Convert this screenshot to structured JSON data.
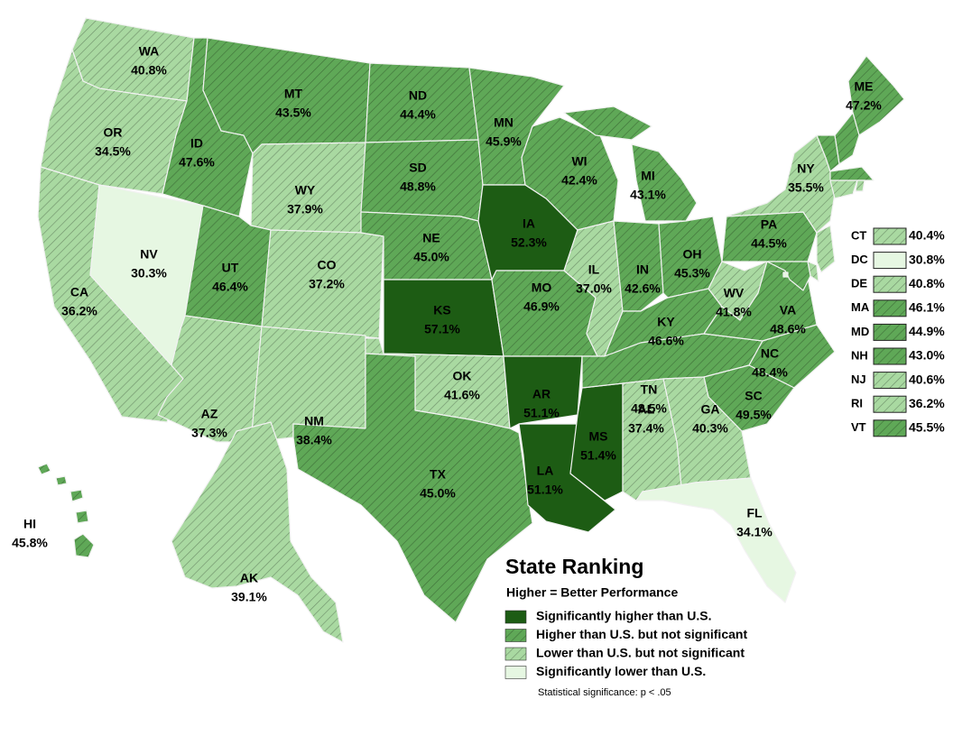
{
  "map": {
    "title": "State Ranking",
    "subtitle": "Higher = Better Performance",
    "note": "Statistical significance: p < .05",
    "legend": [
      {
        "label": "Significantly higher than U.S.",
        "color": "#1d5c14",
        "hatch": false
      },
      {
        "label": "Higher than U.S. but not significant",
        "color": "#5fa857",
        "hatch": true
      },
      {
        "label": "Lower than U.S. but not significant",
        "color": "#a9d9a1",
        "hatch": true
      },
      {
        "label": "Significantly lower than U.S.",
        "color": "#e6f7e2",
        "hatch": false
      }
    ],
    "states": [
      {
        "abbr": "WA",
        "value": "40.8%",
        "level": 2
      },
      {
        "abbr": "OR",
        "value": "34.5%",
        "level": 2
      },
      {
        "abbr": "CA",
        "value": "36.2%",
        "level": 2
      },
      {
        "abbr": "NV",
        "value": "30.3%",
        "level": 3
      },
      {
        "abbr": "ID",
        "value": "47.6%",
        "level": 1
      },
      {
        "abbr": "MT",
        "value": "43.5%",
        "level": 1
      },
      {
        "abbr": "WY",
        "value": "37.9%",
        "level": 2
      },
      {
        "abbr": "UT",
        "value": "46.4%",
        "level": 1
      },
      {
        "abbr": "CO",
        "value": "37.2%",
        "level": 2
      },
      {
        "abbr": "AZ",
        "value": "37.3%",
        "level": 2
      },
      {
        "abbr": "NM",
        "value": "38.4%",
        "level": 2
      },
      {
        "abbr": "ND",
        "value": "44.4%",
        "level": 1
      },
      {
        "abbr": "SD",
        "value": "48.8%",
        "level": 1
      },
      {
        "abbr": "NE",
        "value": "45.0%",
        "level": 1
      },
      {
        "abbr": "KS",
        "value": "57.1%",
        "level": 0
      },
      {
        "abbr": "OK",
        "value": "41.6%",
        "level": 2
      },
      {
        "abbr": "TX",
        "value": "45.0%",
        "level": 1
      },
      {
        "abbr": "MN",
        "value": "45.9%",
        "level": 1
      },
      {
        "abbr": "IA",
        "value": "52.3%",
        "level": 0
      },
      {
        "abbr": "MO",
        "value": "46.9%",
        "level": 1
      },
      {
        "abbr": "AR",
        "value": "51.1%",
        "level": 0
      },
      {
        "abbr": "LA",
        "value": "51.1%",
        "level": 0
      },
      {
        "abbr": "MS",
        "value": "51.4%",
        "level": 0
      },
      {
        "abbr": "WI",
        "value": "42.4%",
        "level": 1
      },
      {
        "abbr": "IL",
        "value": "37.0%",
        "level": 2
      },
      {
        "abbr": "MI",
        "value": "43.1%",
        "level": 1
      },
      {
        "abbr": "IN",
        "value": "42.6%",
        "level": 1
      },
      {
        "abbr": "OH",
        "value": "45.3%",
        "level": 1
      },
      {
        "abbr": "KY",
        "value": "46.6%",
        "level": 1
      },
      {
        "abbr": "TN",
        "value": "48.5%",
        "level": 1
      },
      {
        "abbr": "WV",
        "value": "41.8%",
        "level": 2
      },
      {
        "abbr": "VA",
        "value": "48.6%",
        "level": 1
      },
      {
        "abbr": "NC",
        "value": "48.4%",
        "level": 1
      },
      {
        "abbr": "SC",
        "value": "49.5%",
        "level": 1
      },
      {
        "abbr": "GA",
        "value": "40.3%",
        "level": 2
      },
      {
        "abbr": "AL",
        "value": "37.4%",
        "level": 2
      },
      {
        "abbr": "FL",
        "value": "34.1%",
        "level": 3
      },
      {
        "abbr": "PA",
        "value": "44.5%",
        "level": 1
      },
      {
        "abbr": "NY",
        "value": "35.5%",
        "level": 2
      },
      {
        "abbr": "ME",
        "value": "47.2%",
        "level": 1
      },
      {
        "abbr": "HI",
        "value": "45.8%",
        "level": 1
      },
      {
        "abbr": "AK",
        "value": "39.1%",
        "level": 2
      }
    ],
    "inset": [
      {
        "abbr": "CT",
        "value": "40.4%",
        "level": 2
      },
      {
        "abbr": "DC",
        "value": "30.8%",
        "level": 3
      },
      {
        "abbr": "DE",
        "value": "40.8%",
        "level": 2
      },
      {
        "abbr": "MA",
        "value": "46.1%",
        "level": 1
      },
      {
        "abbr": "MD",
        "value": "44.9%",
        "level": 1
      },
      {
        "abbr": "NH",
        "value": "43.0%",
        "level": 1
      },
      {
        "abbr": "NJ",
        "value": "40.6%",
        "level": 2
      },
      {
        "abbr": "RI",
        "value": "36.2%",
        "level": 2
      },
      {
        "abbr": "VT",
        "value": "45.5%",
        "level": 1
      }
    ]
  }
}
